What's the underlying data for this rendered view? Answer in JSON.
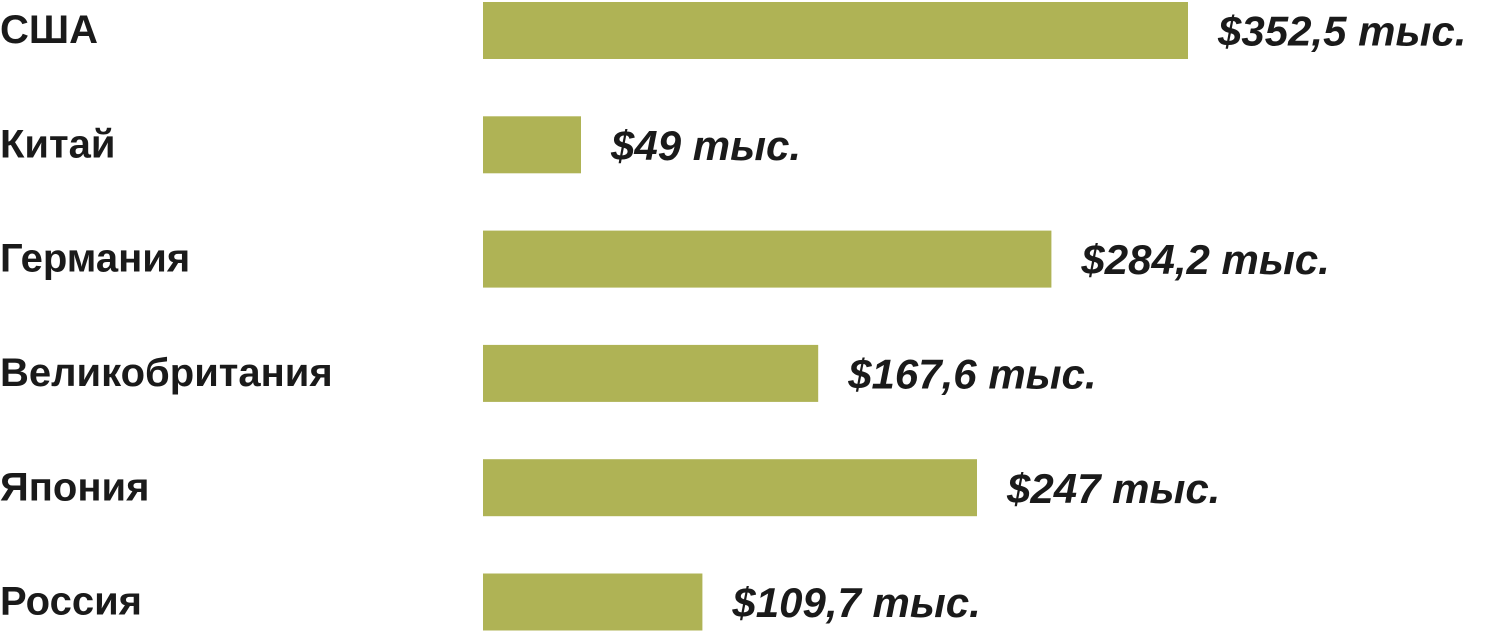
{
  "chart_data": {
    "type": "bar",
    "orientation": "horizontal",
    "categories": [
      "США",
      "Китай",
      "Германия",
      "Великобритания",
      "Япония",
      "Россия"
    ],
    "values": [
      352.5,
      49,
      284.2,
      167.6,
      247,
      109.7
    ],
    "value_labels": [
      "$352,5 тыс.",
      "$49 тыс.",
      "$284,2 тыс.",
      "$167,6 тыс.",
      "$247 тыс.",
      "$109,7 тыс."
    ],
    "color": "#afb355"
  }
}
